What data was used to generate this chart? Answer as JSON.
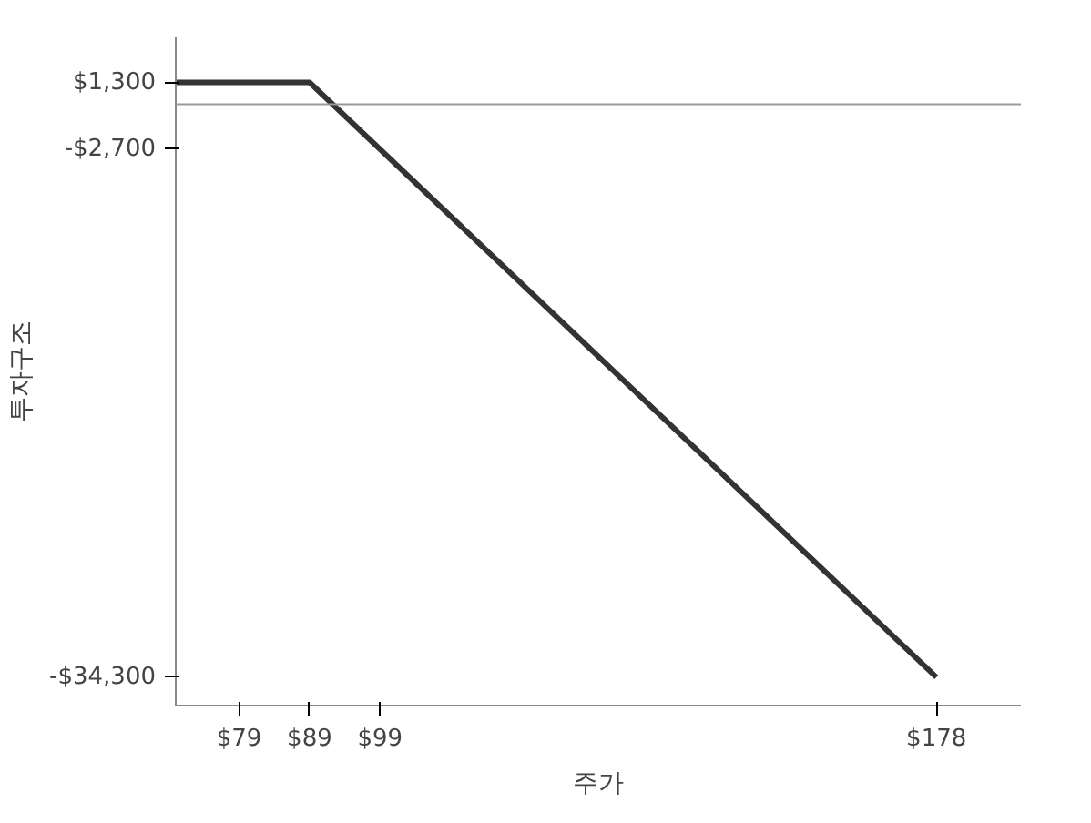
{
  "chart_data": {
    "type": "line",
    "xlabel": "주가",
    "ylabel": "투자구조",
    "x": [
      70,
      89,
      178
    ],
    "series": [
      {
        "color": "#333333",
        "values": [
          1300,
          1300,
          -34300
        ]
      }
    ],
    "xlim": [
      70,
      190
    ],
    "ylim": [
      -36000,
      4000
    ],
    "xticks": [
      {
        "value": 79,
        "label": "$79"
      },
      {
        "value": 89,
        "label": "$89"
      },
      {
        "value": 99,
        "label": "$99"
      },
      {
        "value": 178,
        "label": "$178"
      }
    ],
    "yticks": [
      {
        "value": 1300,
        "label": "$1,300"
      },
      {
        "value": -2700,
        "label": "-$2,700"
      },
      {
        "value": -34300,
        "label": "-$34,300"
      }
    ],
    "ref_lines": [
      {
        "axis": "y",
        "value": 0,
        "color": "#999999"
      }
    ],
    "grid": false,
    "marker": "none",
    "line_style": "solid"
  }
}
